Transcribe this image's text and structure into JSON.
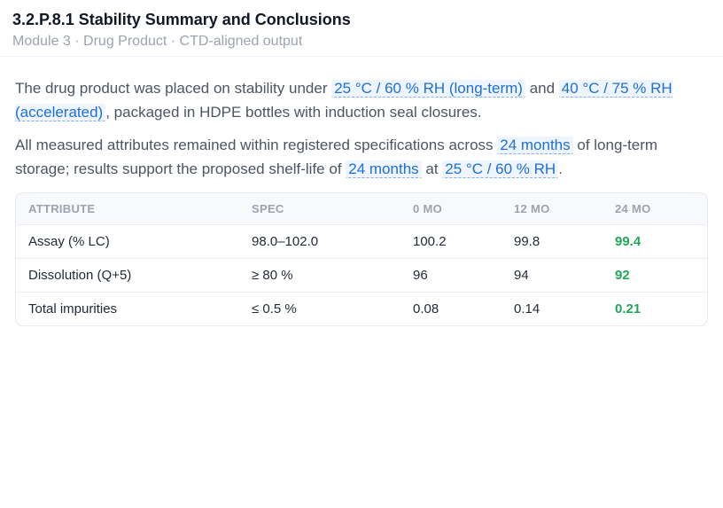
{
  "header": {
    "title": "3.2.P.8.1 Stability Summary and Conclusions",
    "subtitle": "Module 3 · Drug Product · CTD-aligned output"
  },
  "summary": {
    "p1_text1": "The drug product was placed on stability under ",
    "p1_chip1": "25 °C / 60 % RH (long-term)",
    "p1_text2": " and ",
    "p1_chip2": "40 °C / 75 % RH (accelerated)",
    "p1_text3": ", packaged in HDPE bottles with induction seal closures.",
    "p2_text1": "All measured attributes remained within registered specifications across ",
    "p2_chip1": "24 months",
    "p2_text2": " of long-term storage; results support the proposed shelf-life of ",
    "p2_chip2": "24 months",
    "p2_text3": " at ",
    "p2_chip3": "25 °C / 60 % RH",
    "p2_text4": "."
  },
  "table": {
    "headers": [
      "ATTRIBUTE",
      "SPEC",
      "0 MO",
      "12 MO",
      "24 MO"
    ],
    "rows": [
      [
        "Assay (% LC)",
        "98.0–102.0",
        "100.2",
        "99.8",
        "99.4"
      ],
      [
        "Dissolution (Q+5)",
        "≥ 80 %",
        "96",
        "94",
        "92"
      ],
      [
        "Total impurities",
        "≤ 0.5 %",
        "0.08",
        "0.14",
        "0.21"
      ]
    ]
  },
  "colors": {
    "accent": "#1d6fd8",
    "chip_bg": "#eef5ff",
    "latest_value": "#22a75a"
  }
}
